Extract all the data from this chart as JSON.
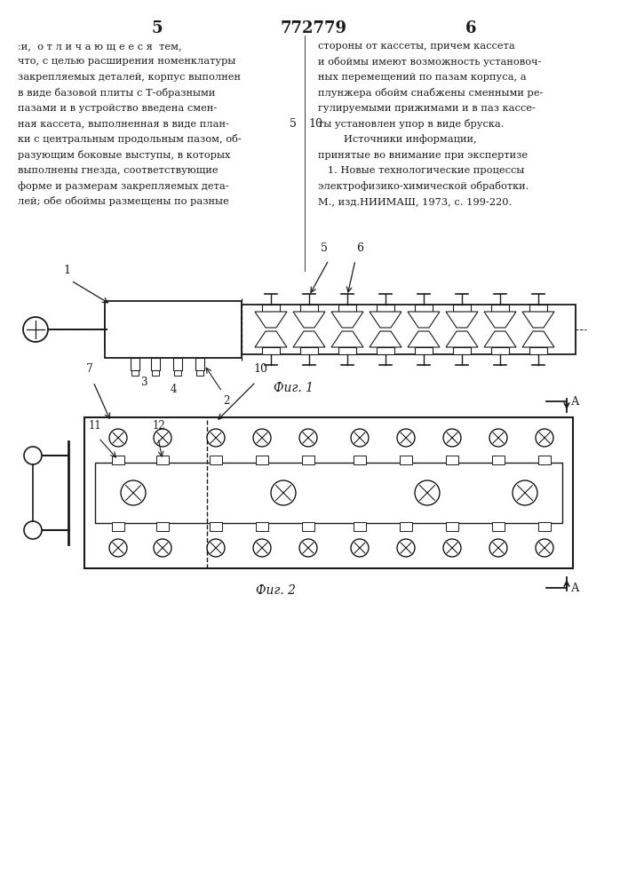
{
  "page_number_left": "5",
  "page_number_center": "772779",
  "page_number_right": "6",
  "left_column_text": [
    ":и,  о т л и ч а ю щ е е с я  тем,",
    "что, с целью расширения номенклатуры",
    "закрепляемых деталей, корпус выполнен",
    "в виде базовой плиты с Т-образными",
    "пазами и в устройство введена смен-",
    "ная кассета, выполненная в виде план-",
    "ки с центральным продольным пазом, об-",
    "разующим боковые выступы, в которых",
    "выполнены гнезда, соответствующие",
    "форме и размерам закрепляемых дета-",
    "лей; обе обоймы размещены по разные"
  ],
  "left_column_number": "5",
  "right_column_text": [
    "стороны от кассеты, причем кассета",
    "и обоймы имеют возможность установоч-",
    "ных перемещений по пазам корпуса, а",
    "плунжера обойм снабжены сменными ре-",
    "гулируемыми прижимами и в паз кассе-",
    "ты установлен упор в виде бруска.",
    "        Источники информации,",
    "принятые во внимание при экспертизе",
    "   1. Новые технологические процессы",
    "электрофизико-химической обработки.",
    "М., изд.НИИМАШ, 1973, с. 199-220."
  ],
  "right_column_number": "10",
  "fig1_caption": "Фиг. 1",
  "fig2_caption": "Фиг. 2",
  "bg_color": "#ffffff",
  "line_color": "#1a1a1a",
  "text_color": "#1a1a1a"
}
